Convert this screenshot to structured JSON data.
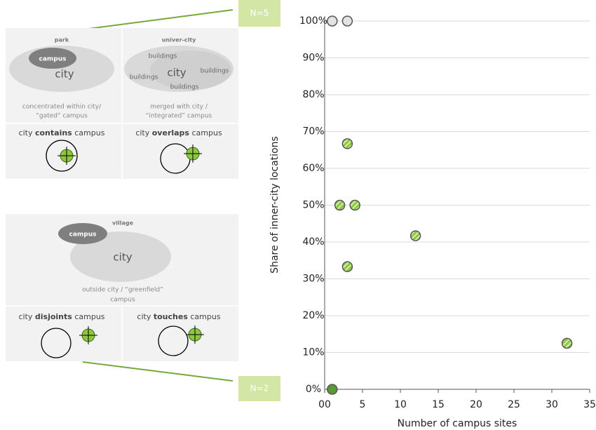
{
  "chart_data": {
    "type": "scatter",
    "x": [
      1,
      3,
      3,
      2,
      4,
      12,
      3,
      32,
      1
    ],
    "values": [
      100,
      100,
      66.7,
      50,
      50,
      41.7,
      33.3,
      12.5,
      0
    ],
    "colors": [
      "#e3e3e3",
      "#e3e3e3",
      "#8dc63f",
      "#8dc63f",
      "#8dc63f",
      "#8dc63f",
      "#8dc63f",
      "#8dc63f",
      "#5a9a32"
    ],
    "hatched": [
      false,
      false,
      true,
      true,
      true,
      true,
      true,
      true,
      false
    ],
    "xlabel": "Number of campus sites",
    "ylabel": "Share of inner-city locations",
    "xlim": [
      0,
      35
    ],
    "xticks": [
      {
        "value": 0,
        "label": "00"
      },
      5,
      10,
      15,
      20,
      25,
      30,
      35
    ],
    "ylim": [
      0,
      100
    ],
    "yticks": [
      {
        "value": 0,
        "label": "0%"
      },
      {
        "value": 10,
        "label": "10%"
      },
      {
        "value": 20,
        "label": "20%"
      },
      {
        "value": 30,
        "label": "30%"
      },
      {
        "value": 40,
        "label": "40%"
      },
      {
        "value": 50,
        "label": "50%"
      },
      {
        "value": 60,
        "label": "60%"
      },
      {
        "value": 70,
        "label": "70%"
      },
      {
        "value": 80,
        "label": "80%"
      },
      {
        "value": 90,
        "label": "90%"
      },
      {
        "value": 100,
        "label": "100%"
      }
    ],
    "grid": true,
    "annotations": [
      "N=5",
      "N=2"
    ]
  },
  "panels": [
    {
      "columns": [
        {
          "title": "park",
          "campus": "campus",
          "city": "city",
          "caption": [
            "concentrated within city/",
            "“gated” campus"
          ],
          "relation": {
            "pre": "city",
            "verb": "contains",
            "post": "campus"
          }
        },
        {
          "title": "univer-city",
          "buildings": [
            "buildings",
            "buildings",
            "buildings",
            "buildings"
          ],
          "city": "city",
          "caption": [
            "merged with city /",
            "“integrated” campus"
          ],
          "relation": {
            "pre": "city",
            "verb": "overlaps",
            "post": "campus"
          }
        }
      ]
    },
    {
      "title": "village",
      "campus": "campus",
      "city": "city",
      "caption": [
        "outside city / “greenfield”",
        "campus"
      ],
      "relations": [
        {
          "pre": "city",
          "verb": "disjoints",
          "post": "campus"
        },
        {
          "pre": "city",
          "verb": "touches",
          "post": "campus"
        }
      ]
    }
  ]
}
